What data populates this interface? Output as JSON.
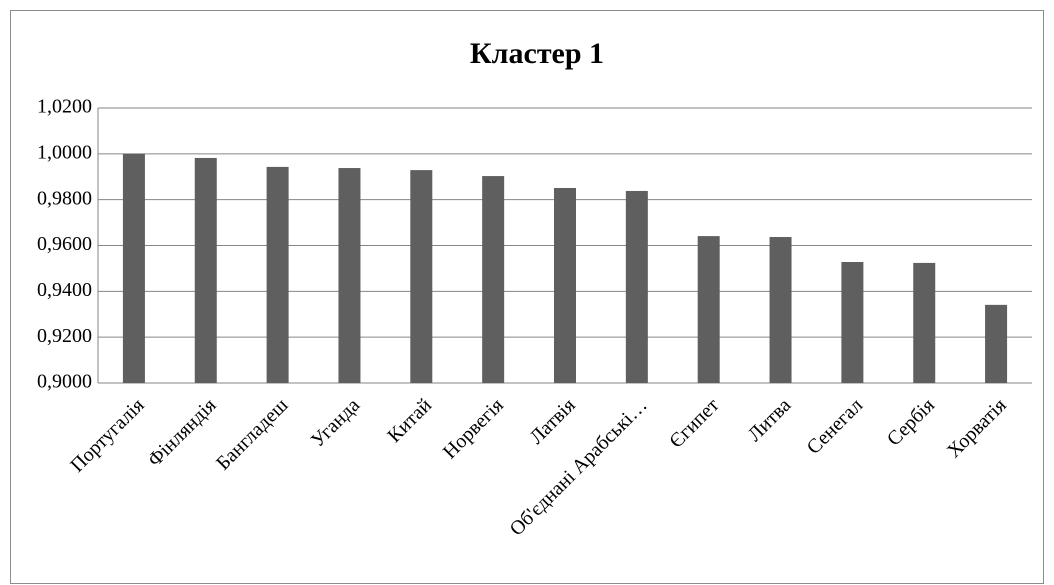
{
  "chart_data": {
    "type": "bar",
    "title": "Кластер 1",
    "categories": [
      "Португалія",
      "Фінляндія",
      "Бангладеш",
      "Уганда",
      "Китай",
      "Норвегія",
      "Латвія",
      "Об'єднані Арабські…",
      "Єгипет",
      "Литва",
      "Сенегал",
      "Сербія",
      "Хорватія"
    ],
    "values": [
      1.0,
      0.9982,
      0.9943,
      0.9938,
      0.9929,
      0.9903,
      0.9851,
      0.9838,
      0.9641,
      0.9637,
      0.9528,
      0.9524,
      0.9341
    ],
    "color": "#5f5f5f",
    "ylim": [
      0.9,
      1.02
    ],
    "yticks": [
      {
        "value": 0.9,
        "label": "0,9000"
      },
      {
        "value": 0.92,
        "label": "0,9200"
      },
      {
        "value": 0.94,
        "label": "0,9400"
      },
      {
        "value": 0.96,
        "label": "0,9600"
      },
      {
        "value": 0.98,
        "label": "0,9800"
      },
      {
        "value": 1.0,
        "label": "1,0000"
      },
      {
        "value": 1.02,
        "label": "1,0200"
      }
    ],
    "grid": true
  }
}
